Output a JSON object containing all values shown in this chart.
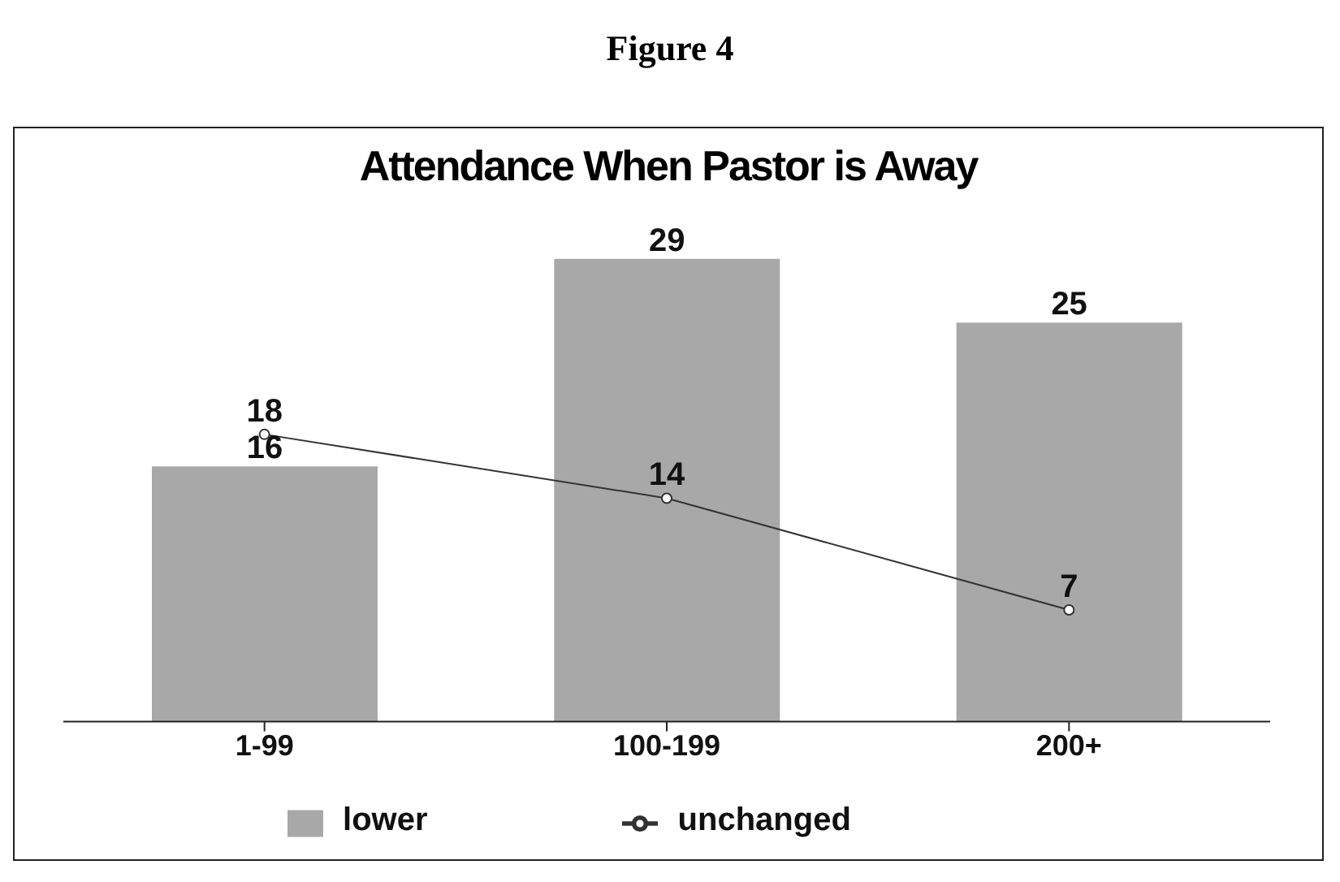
{
  "chart_data": {
    "type": "bar",
    "title": "Attendance When Pastor is Away",
    "annotations": [
      "Figure 4"
    ],
    "categories": [
      "1-99",
      "100-199",
      "200+"
    ],
    "series": [
      {
        "name": "lower",
        "color": "#a8a8a8",
        "values": [
          16,
          29,
          25
        ]
      },
      {
        "name": "unchanged",
        "type": "line",
        "color": "#333333",
        "values": [
          18,
          14,
          7
        ]
      }
    ],
    "data_labels": true,
    "marker": "circle",
    "legend": "bottom",
    "grid": false
  }
}
